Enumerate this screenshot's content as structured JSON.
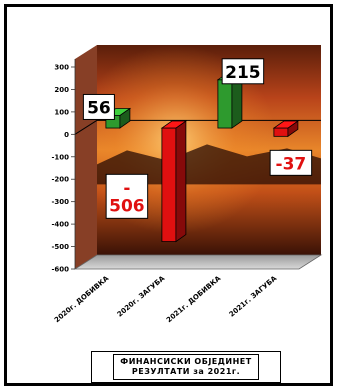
{
  "chart_data": {
    "type": "bar",
    "title": "",
    "xlabel": "",
    "ylabel": "",
    "categories": [
      "2020г. ДОБИВКА",
      "2020г. ЗАГУБА",
      "2021г. ДОБИВКА",
      "2021г. ЗАГУБА"
    ],
    "values": [
      56,
      -506,
      215,
      -37
    ],
    "value_labels": [
      "56",
      "-\n506",
      "215",
      "-37"
    ],
    "bar_colors": [
      "#2e9a2e",
      "#e01010",
      "#2e9a2e",
      "#e01010"
    ],
    "value_label_colors": [
      "#000000",
      "#e01010",
      "#000000",
      "#e01010"
    ],
    "ylim": [
      -600,
      300
    ],
    "yticks": [
      300,
      200,
      100,
      0,
      -100,
      -200,
      -300,
      -400,
      -500,
      -600
    ],
    "grid": false,
    "legend": "none"
  },
  "footer": {
    "line1": "ФИНАНСИСКИ ОБЈЕДИНЕТ",
    "line2": "РЕЗУЛТАТИ за 2021г."
  }
}
